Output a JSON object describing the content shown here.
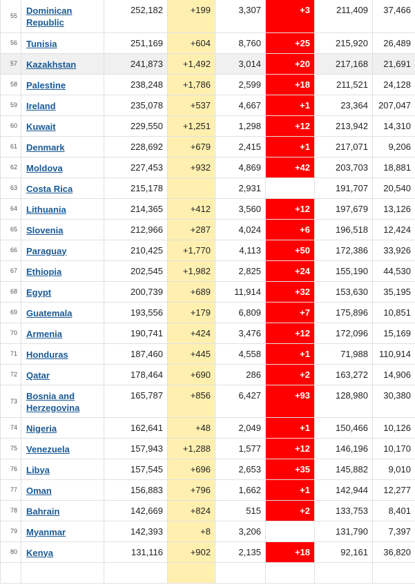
{
  "rows": [
    {
      "rank": "55",
      "country": "Dominican Republic",
      "total_cases": "252,182",
      "new_cases": "+199",
      "total_deaths": "3,307",
      "new_deaths": "+3",
      "total_recovered": "211,409",
      "active_cases": "37,466"
    },
    {
      "rank": "56",
      "country": "Tunisia",
      "total_cases": "251,169",
      "new_cases": "+604",
      "total_deaths": "8,760",
      "new_deaths": "+25",
      "total_recovered": "215,920",
      "active_cases": "26,489"
    },
    {
      "rank": "57",
      "country": "Kazakhstan",
      "total_cases": "241,873",
      "new_cases": "+1,492",
      "total_deaths": "3,014",
      "new_deaths": "+20",
      "total_recovered": "217,168",
      "active_cases": "21,691"
    },
    {
      "rank": "58",
      "country": "Palestine",
      "total_cases": "238,248",
      "new_cases": "+1,786",
      "total_deaths": "2,599",
      "new_deaths": "+18",
      "total_recovered": "211,521",
      "active_cases": "24,128"
    },
    {
      "rank": "59",
      "country": "Ireland",
      "total_cases": "235,078",
      "new_cases": "+537",
      "total_deaths": "4,667",
      "new_deaths": "+1",
      "total_recovered": "23,364",
      "active_cases": "207,047"
    },
    {
      "rank": "60",
      "country": "Kuwait",
      "total_cases": "229,550",
      "new_cases": "+1,251",
      "total_deaths": "1,298",
      "new_deaths": "+12",
      "total_recovered": "213,942",
      "active_cases": "14,310"
    },
    {
      "rank": "61",
      "country": "Denmark",
      "total_cases": "228,692",
      "new_cases": "+679",
      "total_deaths": "2,415",
      "new_deaths": "+1",
      "total_recovered": "217,071",
      "active_cases": "9,206"
    },
    {
      "rank": "62",
      "country": "Moldova",
      "total_cases": "227,453",
      "new_cases": "+932",
      "total_deaths": "4,869",
      "new_deaths": "+42",
      "total_recovered": "203,703",
      "active_cases": "18,881"
    },
    {
      "rank": "63",
      "country": "Costa Rica",
      "total_cases": "215,178",
      "new_cases": "",
      "total_deaths": "2,931",
      "new_deaths": "",
      "total_recovered": "191,707",
      "active_cases": "20,540"
    },
    {
      "rank": "64",
      "country": "Lithuania",
      "total_cases": "214,365",
      "new_cases": "+412",
      "total_deaths": "3,560",
      "new_deaths": "+12",
      "total_recovered": "197,679",
      "active_cases": "13,126"
    },
    {
      "rank": "65",
      "country": "Slovenia",
      "total_cases": "212,966",
      "new_cases": "+287",
      "total_deaths": "4,024",
      "new_deaths": "+6",
      "total_recovered": "196,518",
      "active_cases": "12,424"
    },
    {
      "rank": "66",
      "country": "Paraguay",
      "total_cases": "210,425",
      "new_cases": "+1,770",
      "total_deaths": "4,113",
      "new_deaths": "+50",
      "total_recovered": "172,386",
      "active_cases": "33,926"
    },
    {
      "rank": "67",
      "country": "Ethiopia",
      "total_cases": "202,545",
      "new_cases": "+1,982",
      "total_deaths": "2,825",
      "new_deaths": "+24",
      "total_recovered": "155,190",
      "active_cases": "44,530"
    },
    {
      "rank": "68",
      "country": "Egypt",
      "total_cases": "200,739",
      "new_cases": "+689",
      "total_deaths": "11,914",
      "new_deaths": "+32",
      "total_recovered": "153,630",
      "active_cases": "35,195"
    },
    {
      "rank": "69",
      "country": "Guatemala",
      "total_cases": "193,556",
      "new_cases": "+179",
      "total_deaths": "6,809",
      "new_deaths": "+7",
      "total_recovered": "175,896",
      "active_cases": "10,851"
    },
    {
      "rank": "70",
      "country": "Armenia",
      "total_cases": "190,741",
      "new_cases": "+424",
      "total_deaths": "3,476",
      "new_deaths": "+12",
      "total_recovered": "172,096",
      "active_cases": "15,169"
    },
    {
      "rank": "71",
      "country": "Honduras",
      "total_cases": "187,460",
      "new_cases": "+445",
      "total_deaths": "4,558",
      "new_deaths": "+1",
      "total_recovered": "71,988",
      "active_cases": "110,914"
    },
    {
      "rank": "72",
      "country": "Qatar",
      "total_cases": "178,464",
      "new_cases": "+690",
      "total_deaths": "286",
      "new_deaths": "+2",
      "total_recovered": "163,272",
      "active_cases": "14,906"
    },
    {
      "rank": "73",
      "country": "Bosnia and Herzegovina",
      "total_cases": "165,787",
      "new_cases": "+856",
      "total_deaths": "6,427",
      "new_deaths": "+93",
      "total_recovered": "128,980",
      "active_cases": "30,380"
    },
    {
      "rank": "74",
      "country": "Nigeria",
      "total_cases": "162,641",
      "new_cases": "+48",
      "total_deaths": "2,049",
      "new_deaths": "+1",
      "total_recovered": "150,466",
      "active_cases": "10,126"
    },
    {
      "rank": "75",
      "country": "Venezuela",
      "total_cases": "157,943",
      "new_cases": "+1,288",
      "total_deaths": "1,577",
      "new_deaths": "+12",
      "total_recovered": "146,196",
      "active_cases": "10,170"
    },
    {
      "rank": "76",
      "country": "Libya",
      "total_cases": "157,545",
      "new_cases": "+696",
      "total_deaths": "2,653",
      "new_deaths": "+35",
      "total_recovered": "145,882",
      "active_cases": "9,010"
    },
    {
      "rank": "77",
      "country": "Oman",
      "total_cases": "156,883",
      "new_cases": "+796",
      "total_deaths": "1,662",
      "new_deaths": "+1",
      "total_recovered": "142,944",
      "active_cases": "12,277"
    },
    {
      "rank": "78",
      "country": "Bahrain",
      "total_cases": "142,669",
      "new_cases": "+824",
      "total_deaths": "515",
      "new_deaths": "+2",
      "total_recovered": "133,753",
      "active_cases": "8,401"
    },
    {
      "rank": "79",
      "country": "Myanmar",
      "total_cases": "142,393",
      "new_cases": "+8",
      "total_deaths": "3,206",
      "new_deaths": "",
      "total_recovered": "131,790",
      "active_cases": "7,397"
    },
    {
      "rank": "80",
      "country": "Kenya",
      "total_cases": "131,116",
      "new_cases": "+902",
      "total_deaths": "2,135",
      "new_deaths": "+18",
      "total_recovered": "92,161",
      "active_cases": "36,820"
    },
    {
      "rank": "",
      "country": "",
      "total_cases": "",
      "new_cases": "",
      "total_deaths": "",
      "new_deaths": "",
      "total_recovered": "",
      "active_cases": ""
    }
  ],
  "colors": {
    "new_cases_bg": "#fff0b0",
    "new_deaths_bg": "#ff0000",
    "link": "#1a5a96",
    "highlight_row": "#f0f0f0"
  }
}
